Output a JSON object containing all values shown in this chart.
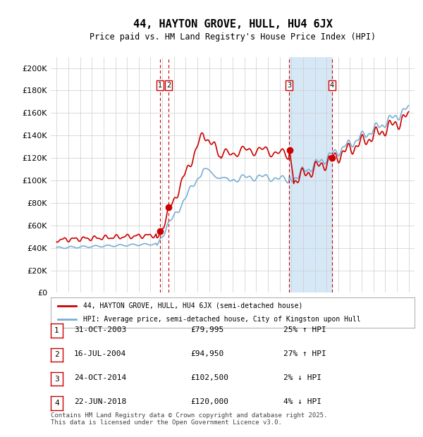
{
  "title": "44, HAYTON GROVE, HULL, HU4 6JX",
  "subtitle": "Price paid vs. HM Land Registry's House Price Index (HPI)",
  "footer": "Contains HM Land Registry data © Crown copyright and database right 2025.\nThis data is licensed under the Open Government Licence v3.0.",
  "legend_line1": "44, HAYTON GROVE, HULL, HU4 6JX (semi-detached house)",
  "legend_line2": "HPI: Average price, semi-detached house, City of Kingston upon Hull",
  "transactions": [
    {
      "num": 1,
      "date": "31-OCT-2003",
      "price": 79995,
      "pct": "25%",
      "dir": "↑",
      "x_year": 2003.83
    },
    {
      "num": 2,
      "date": "16-JUL-2004",
      "price": 94950,
      "pct": "27%",
      "dir": "↑",
      "x_year": 2004.54
    },
    {
      "num": 3,
      "date": "24-OCT-2014",
      "price": 102500,
      "pct": "2%",
      "dir": "↓",
      "x_year": 2014.81
    },
    {
      "num": 4,
      "date": "22-JUN-2018",
      "price": 120000,
      "pct": "4%",
      "dir": "↓",
      "x_year": 2018.47
    }
  ],
  "shaded_region": [
    2014.81,
    2018.47
  ],
  "ylim": [
    0,
    210000
  ],
  "xlim": [
    1994.5,
    2025.5
  ],
  "yticks": [
    0,
    20000,
    40000,
    60000,
    80000,
    100000,
    120000,
    140000,
    160000,
    180000,
    200000
  ],
  "ytick_labels": [
    "£0",
    "£20K",
    "£40K",
    "£60K",
    "£80K",
    "£100K",
    "£120K",
    "£140K",
    "£160K",
    "£180K",
    "£200K"
  ],
  "xticks": [
    1995,
    1996,
    1997,
    1998,
    1999,
    2000,
    2001,
    2002,
    2003,
    2004,
    2005,
    2006,
    2007,
    2008,
    2009,
    2010,
    2011,
    2012,
    2013,
    2014,
    2015,
    2016,
    2017,
    2018,
    2019,
    2020,
    2021,
    2022,
    2023,
    2024,
    2025
  ],
  "red_color": "#cc0000",
  "blue_color": "#7bafd4",
  "dot_color": "#cc0000",
  "vline_color": "#cc0000",
  "shade_color": "#d6e8f5",
  "grid_color": "#cccccc",
  "bg_color": "#ffffff",
  "box_color": "#cc0000"
}
